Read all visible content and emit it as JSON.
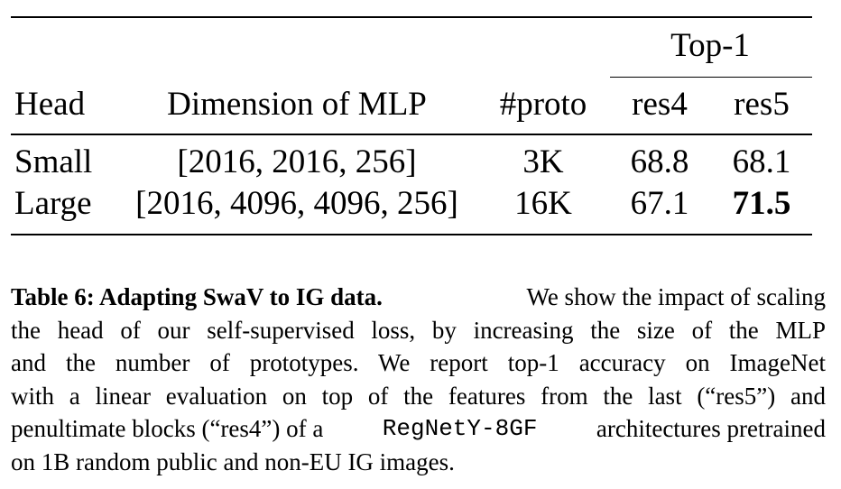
{
  "table": {
    "group_header": "Top-1",
    "headers": {
      "head": "Head",
      "dimension": "Dimension of MLP",
      "proto": "#proto",
      "res4": "res4",
      "res5": "res5"
    },
    "rows": [
      {
        "head": "Small",
        "dimension": "[2016, 2016, 256]",
        "proto": "3K",
        "res4": "68.8",
        "res5": "68.1",
        "res5_bold": false
      },
      {
        "head": "Large",
        "dimension": "[2016, 4096, 4096, 256]",
        "proto": "16K",
        "res4": "67.1",
        "res5": "71.5",
        "res5_bold": true
      }
    ]
  },
  "caption": {
    "label": "Table 6: Adapting SwaV to IG data.",
    "lines": [
      "We show the impact of scaling",
      "the head of our self-supervised loss, by increasing the size of the MLP",
      "and the number of prototypes. We report top-1 accuracy on ImageNet",
      "with a linear evaluation on top of the features from the last (“res5”) and",
      "penultimate blocks (“res4”) of a",
      "architectures pretrained",
      "on 1B random public and non-EU IG images."
    ],
    "architecture": "RegNetY-8GF"
  }
}
